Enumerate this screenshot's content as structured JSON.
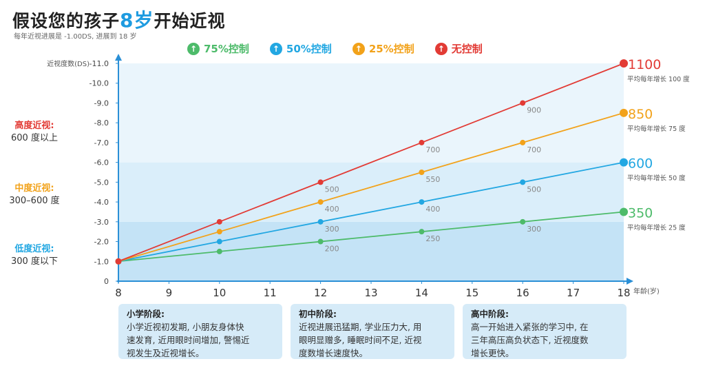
{
  "title_pre": "假设您的孩子",
  "title_highlight": "8岁",
  "title_post": "开始近视",
  "subtitle": "每年近视进展是 -1.00DS, 进展到 18 岁",
  "legend": [
    {
      "label": "75%控制",
      "color": "#4dbb6a",
      "icon": "up-arrow-icon"
    },
    {
      "label": "50%控制",
      "color": "#22a7e2",
      "icon": "up-arrow-icon"
    },
    {
      "label": "25%控制",
      "color": "#f2a21a",
      "icon": "up-arrow-icon"
    },
    {
      "label": "无控制",
      "color": "#e23b35",
      "icon": "up-arrow-icon"
    }
  ],
  "zones": [
    {
      "title": "高度近视:",
      "desc": "600 度以上",
      "color": "#e23b35"
    },
    {
      "title": "中度近视:",
      "desc": "300–600 度",
      "color": "#f2a21a"
    },
    {
      "title": "低度近视:",
      "desc": "300 度以下",
      "color": "#22a7e2"
    }
  ],
  "chart_data": {
    "type": "line",
    "ylabel": "近视度数(DS)",
    "xlabel": "年龄(岁)",
    "x_ticks": [
      8,
      9,
      10,
      11,
      12,
      13,
      14,
      15,
      16,
      17,
      18
    ],
    "y_ticks": [
      "0",
      "-1.0",
      "-2.0",
      "-3.0",
      "-4.0",
      "-5.0",
      "-6.0",
      "-7.0",
      "-8.0",
      "-9.0",
      "-10.0",
      "-11.0"
    ],
    "xlim": [
      8,
      18
    ],
    "ylim": [
      0,
      11
    ],
    "series": [
      {
        "name": "75%控制",
        "color": "#4dbb6a",
        "x": [
          8,
          10,
          12,
          14,
          16,
          18
        ],
        "y": [
          1.0,
          1.5,
          2.0,
          2.5,
          3.0,
          3.5
        ],
        "labels": [
          "",
          "",
          "200",
          "250",
          "300",
          ""
        ]
      },
      {
        "name": "50%控制",
        "color": "#22a7e2",
        "x": [
          8,
          10,
          12,
          14,
          16,
          18
        ],
        "y": [
          1.0,
          2.0,
          3.0,
          4.0,
          5.0,
          6.0
        ],
        "labels": [
          "",
          "",
          "300",
          "400",
          "500",
          ""
        ]
      },
      {
        "name": "25%控制",
        "color": "#f2a21a",
        "x": [
          8,
          10,
          12,
          14,
          16,
          18
        ],
        "y": [
          1.0,
          2.5,
          4.0,
          5.5,
          7.0,
          8.5
        ],
        "labels": [
          "",
          "",
          "400",
          "550",
          "700",
          ""
        ]
      },
      {
        "name": "无控制",
        "color": "#e23b35",
        "x": [
          8,
          10,
          12,
          14,
          16,
          18
        ],
        "y": [
          1.0,
          3.0,
          5.0,
          7.0,
          9.0,
          11.0
        ],
        "labels": [
          "",
          "",
          "500",
          "700",
          "900",
          ""
        ]
      }
    ],
    "end_labels": [
      {
        "value": "1100",
        "note": "平均每年增长 100 度",
        "color": "#e23b35",
        "y": 11.0
      },
      {
        "value": "850",
        "note": "平均每年增长 75 度",
        "color": "#f2a21a",
        "y": 8.5
      },
      {
        "value": "600",
        "note": "平均每年增长 50 度",
        "color": "#22a7e2",
        "y": 6.0
      },
      {
        "value": "350",
        "note": "平均每年增长 25 度",
        "color": "#4dbb6a",
        "y": 3.5
      }
    ],
    "bands": [
      {
        "from": 0,
        "to": 3,
        "color": "#c4e3f6"
      },
      {
        "from": 3,
        "to": 6,
        "color": "#daeefa"
      },
      {
        "from": 6,
        "to": 11,
        "color": "#eaf5fc"
      }
    ]
  },
  "stages": [
    {
      "title": "小学阶段:",
      "lines": [
        "小学近视初发期, 小朋友身体快",
        "速发育, 近用眼时间增加, 警惕近",
        "视发生及近视增长。"
      ]
    },
    {
      "title": "初中阶段:",
      "lines": [
        "近视进展迅猛期, 学业压力大, 用",
        "眼明显赠多, 睡眠时间不足, 近视",
        "度数增长速度快。"
      ]
    },
    {
      "title": "高中阶段:",
      "lines": [
        "高一开始进入紧张的学习中, 在",
        "三年高压高负状态下, 近视度数",
        "增长更快。"
      ]
    }
  ]
}
